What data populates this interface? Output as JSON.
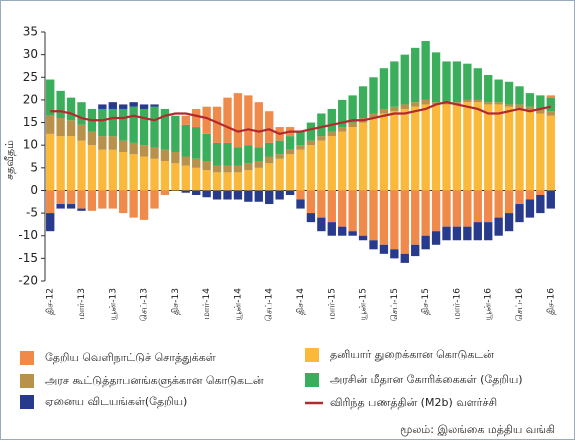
{
  "chart_data": {
    "type": "bar",
    "y_label": "சதவீதம்",
    "source": "மூலம்: இலங்கை மத்திய வங்கி",
    "categories": [
      "திச-12",
      null,
      null,
      "மார்-13",
      null,
      null,
      "யூன்-13",
      null,
      null,
      "செப்-13",
      null,
      null,
      "திச-13",
      null,
      null,
      "மார்-14",
      null,
      null,
      "யூன்-14",
      null,
      null,
      "செப்-14",
      null,
      null,
      "திச-14",
      null,
      null,
      "மார்-15",
      null,
      null,
      "யூன்-15",
      null,
      null,
      "செப்-15",
      null,
      null,
      "திச-15",
      null,
      null,
      "மார்-16",
      null,
      null,
      "யூன்-16",
      null,
      null,
      "செப்-16",
      null,
      null,
      "திச-16"
    ],
    "ylim": [
      -20,
      35
    ],
    "yticks": [
      -20,
      -15,
      -10,
      -5,
      0,
      5,
      10,
      15,
      20,
      25,
      30,
      35
    ],
    "series": [
      {
        "name": "தனியார் துறைக்கான கொடுகடன்",
        "color": "#fbb93b",
        "values": [
          12.5,
          12,
          12,
          11,
          10,
          9,
          9,
          8.5,
          8,
          7.5,
          7,
          6.5,
          6,
          5.5,
          5,
          4.5,
          4,
          4,
          4,
          4.5,
          5,
          6,
          7,
          8,
          9,
          10,
          11,
          12,
          13,
          14,
          15,
          16,
          17,
          17.5,
          18,
          18.5,
          19,
          19,
          19,
          19,
          19.5,
          19.5,
          19,
          19,
          18.5,
          18,
          17.5,
          17,
          16.5
        ]
      },
      {
        "name": "அரச கூட்டுத்தாபனங்களுக்கான கொடுகடன்",
        "color": "#b8914a",
        "values": [
          4,
          4,
          3.5,
          3.5,
          3,
          3,
          3,
          2.5,
          2.5,
          2.5,
          2.5,
          2.5,
          2.5,
          2,
          2,
          2,
          1.5,
          1.5,
          1.5,
          1.5,
          1.5,
          1.5,
          1,
          1,
          1,
          1,
          1,
          1,
          1,
          1,
          1,
          1,
          1,
          1,
          1,
          1,
          1,
          0.5,
          0.5,
          0.5,
          0.5,
          0.5,
          0.5,
          0.5,
          0.5,
          1,
          1,
          1,
          1
        ]
      },
      {
        "name": "அரசின் மீதான கோரிக்கைகள் (தேறிய)",
        "color": "#3aae5a",
        "values": [
          8,
          6,
          5,
          5,
          5,
          6,
          6,
          7,
          8,
          8,
          9,
          9,
          8,
          7,
          7,
          6,
          5,
          5,
          4,
          4,
          3,
          3,
          3,
          3,
          3,
          4,
          5,
          5,
          6,
          6,
          7,
          8,
          9,
          10,
          11,
          12,
          13,
          11,
          9,
          9,
          8,
          7,
          6,
          5,
          5,
          4,
          3,
          3,
          3
        ]
      },
      {
        "name": "தேறிய வெளிநாட்டுச் சொத்துக்கள்",
        "color": "#f08a4b",
        "values": [
          -5,
          -3,
          -3,
          -4,
          -4.5,
          -4,
          -4,
          -5,
          -6,
          -6.5,
          -4,
          -1,
          0,
          2,
          4,
          6,
          8,
          10,
          12,
          11,
          10,
          7,
          3,
          2,
          -2,
          -5,
          -6,
          -7,
          -8,
          -9,
          -10,
          -11,
          -12,
          -13,
          -14,
          -12,
          -10,
          -9,
          -8,
          -8,
          -8,
          -7,
          -7,
          -6,
          -5,
          -3,
          -2,
          -1,
          0.5
        ]
      },
      {
        "name": "ஏனைய விடயங்கள்(தேறிய)",
        "color": "#283a8c",
        "values": [
          -4,
          -1,
          -1,
          -0.5,
          0,
          1,
          1.5,
          1,
          1,
          1,
          0.5,
          0,
          0,
          -0.5,
          -1,
          -1.5,
          -2,
          -2,
          -2,
          -2.5,
          -2.5,
          -3,
          -2,
          -1,
          -2,
          -2,
          -3,
          -3,
          -2,
          -1,
          -1,
          -2,
          -2,
          -2,
          -2,
          -2.5,
          -3,
          -3,
          -3,
          -3,
          -3,
          -4,
          -4,
          -4,
          -4,
          -4,
          -4,
          -4,
          -4
        ]
      },
      {
        "name": "விரிந்த பணத்தின் (M2b) வளர்ச்சி",
        "color": "#b22a2e",
        "type": "line",
        "values": [
          17.5,
          17.5,
          17,
          16,
          15.5,
          15.5,
          16,
          16,
          16.5,
          16,
          15.5,
          16.5,
          17,
          17,
          16.5,
          16,
          15,
          14,
          13,
          13.5,
          13,
          13.5,
          12.5,
          13,
          13,
          13.5,
          14,
          14.5,
          15,
          15.5,
          15.5,
          16,
          16.5,
          17,
          17,
          17.5,
          18,
          19,
          19.5,
          19,
          18.5,
          18,
          17,
          17,
          17.5,
          18,
          17.5,
          18,
          18.5
        ]
      }
    ]
  }
}
